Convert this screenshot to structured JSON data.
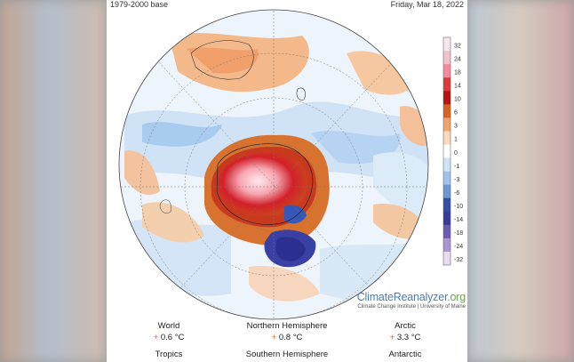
{
  "header": {
    "baseline": "1979-2000 base",
    "date": "Friday, Mar 18, 2022"
  },
  "colorbar": {
    "labels": [
      "32",
      "24",
      "18",
      "14",
      "10",
      "6",
      "3",
      "1",
      "0",
      "-1",
      "-3",
      "-6",
      "-10",
      "-14",
      "-18",
      "-24",
      "-32"
    ],
    "colors": [
      "#f7e6ef",
      "#f4c1cf",
      "#f58a9a",
      "#e03b3b",
      "#b8140f",
      "#d9621e",
      "#f0a36b",
      "#fbd9bd",
      "#ffffff",
      "#cfe3f6",
      "#9ec4ec",
      "#6b9ad6",
      "#2f4fa8",
      "#3a3a9d",
      "#6b5bb4",
      "#a995d0",
      "#e7dcef"
    ],
    "accent_colors": {
      "warm": "#e06a2a",
      "hot": "#c8141c",
      "cool": "#7fb0e2",
      "cold": "#2c3a9c"
    }
  },
  "brand": {
    "name": "ClimateReanalyzer",
    "tld": ".org",
    "subtitle": "Climate Change Institute | University of Maine"
  },
  "stats": [
    {
      "label": "World",
      "value": "0.6 °C"
    },
    {
      "label": "Northern Hemisphere",
      "value": "0.8 °C"
    },
    {
      "label": "Arctic",
      "value": "3.3 °C"
    },
    {
      "label": "Tropics",
      "value": ""
    },
    {
      "label": "Southern Hemisphere",
      "value": ""
    },
    {
      "label": "Antarctic",
      "value": ""
    }
  ],
  "bullet": "+"
}
